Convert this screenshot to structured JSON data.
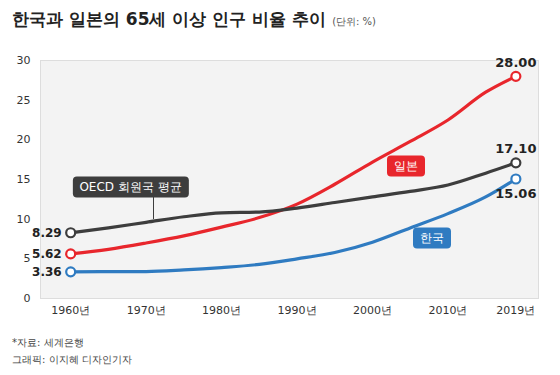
{
  "chart_data": {
    "type": "line",
    "title": "한국과 일본의 65세 이상 인구 비율 추이",
    "subtitle": "(단위: %)",
    "source": "*자료: 세계은행",
    "credit": "그래픽: 이지혜 디자인기자",
    "x": [
      1960,
      1965,
      1970,
      1975,
      1980,
      1985,
      1990,
      1995,
      2000,
      2005,
      2010,
      2015,
      2019
    ],
    "xlim": [
      1956,
      2022
    ],
    "xticks": [
      {
        "value": 1960,
        "label": "1960년"
      },
      {
        "value": 1970,
        "label": "1970년"
      },
      {
        "value": 1980,
        "label": "1980년"
      },
      {
        "value": 1990,
        "label": "1990년"
      },
      {
        "value": 2000,
        "label": "2000년"
      },
      {
        "value": 2010,
        "label": "2010년"
      },
      {
        "value": 2019,
        "label": "2019년"
      }
    ],
    "ylim": [
      0,
      30
    ],
    "yticks": [
      0,
      5,
      10,
      15,
      20,
      25,
      30
    ],
    "grid": false,
    "data_labels": true,
    "series": [
      {
        "name": "일본",
        "color": "#e8262c",
        "values": [
          5.62,
          6.2,
          7.0,
          7.9,
          9.0,
          10.2,
          11.9,
          14.4,
          17.2,
          19.8,
          22.5,
          26.0,
          28.0
        ],
        "value_labels": [
          "5.62",
          null,
          null,
          null,
          null,
          null,
          null,
          null,
          null,
          null,
          null,
          null,
          "28.00"
        ]
      },
      {
        "name": "OECD 회원국 평균",
        "color": "#3d3d3d",
        "values": [
          8.29,
          8.9,
          9.6,
          10.3,
          10.8,
          10.9,
          11.4,
          12.1,
          12.8,
          13.5,
          14.3,
          15.8,
          17.1
        ],
        "value_labels": [
          "8.29",
          null,
          null,
          null,
          null,
          null,
          null,
          null,
          null,
          null,
          null,
          null,
          "17.10"
        ]
      },
      {
        "name": "한국",
        "color": "#2f7bc1",
        "values": [
          3.36,
          3.4,
          3.4,
          3.6,
          3.9,
          4.3,
          5.0,
          5.8,
          7.1,
          8.9,
          10.7,
          12.8,
          15.06
        ],
        "value_labels": [
          "3.36",
          null,
          null,
          null,
          null,
          null,
          null,
          null,
          null,
          null,
          null,
          null,
          "15.06"
        ]
      }
    ]
  }
}
